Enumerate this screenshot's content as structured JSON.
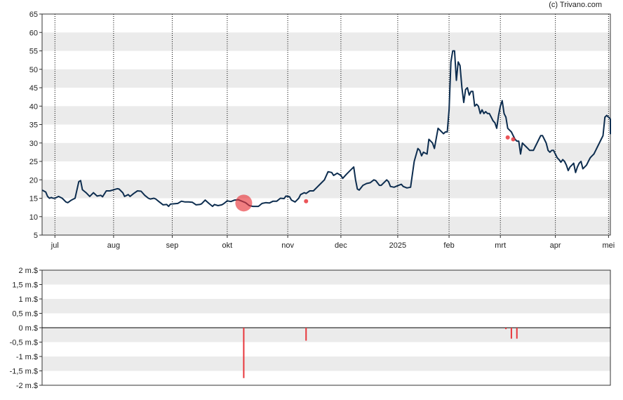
{
  "credit": "(c) Trivano.com",
  "colors": {
    "band": "#ebebeb",
    "price_line": "#0d2d4f",
    "marker": "#e8373c",
    "bar": "#e8373c"
  },
  "chart_data": [
    {
      "type": "line",
      "name": "price",
      "ylim": [
        5,
        65
      ],
      "yticks": [
        5,
        10,
        15,
        20,
        25,
        30,
        35,
        40,
        45,
        50,
        55,
        60,
        65
      ],
      "ytick_labels": [
        "5",
        "10",
        "15",
        "20",
        "25",
        "30",
        "35",
        "40",
        "45",
        "50",
        "55",
        "60",
        "65"
      ],
      "xlim": [
        -2,
        308
      ],
      "month_ticks": [
        {
          "label": "jul",
          "x": 5
        },
        {
          "label": "aug",
          "x": 37
        },
        {
          "label": "sep",
          "x": 69
        },
        {
          "label": "okt",
          "x": 99
        },
        {
          "label": "nov",
          "x": 132
        },
        {
          "label": "dec",
          "x": 161
        },
        {
          "label": "2025",
          "x": 192
        },
        {
          "label": "feb",
          "x": 220
        },
        {
          "label": "mrt",
          "x": 248
        },
        {
          "label": "apr",
          "x": 278
        },
        {
          "label": "mei",
          "x": 307
        }
      ],
      "grid": true,
      "series": [
        {
          "values": [
            [
              -2,
              17.2
            ],
            [
              0,
              16.7
            ],
            [
              1,
              15.5
            ],
            [
              2,
              15
            ],
            [
              3,
              15.2
            ],
            [
              4,
              15
            ],
            [
              5,
              15
            ],
            [
              7,
              15.5
            ],
            [
              9,
              15
            ],
            [
              11,
              14
            ],
            [
              12,
              13.8
            ],
            [
              14,
              14.5
            ],
            [
              16,
              15
            ],
            [
              18,
              19.5
            ],
            [
              19,
              19.8
            ],
            [
              20,
              17.3
            ],
            [
              22,
              16.5
            ],
            [
              24,
              15.5
            ],
            [
              26,
              16.5
            ],
            [
              28,
              15.6
            ],
            [
              30,
              15.8
            ],
            [
              31,
              15.4
            ],
            [
              33,
              17
            ],
            [
              35,
              17
            ],
            [
              37,
              17.3
            ],
            [
              39,
              17.6
            ],
            [
              40,
              17.5
            ],
            [
              42,
              16.5
            ],
            [
              43,
              15.5
            ],
            [
              45,
              16
            ],
            [
              46,
              15.5
            ],
            [
              48,
              16.3
            ],
            [
              50,
              17
            ],
            [
              52,
              16.9
            ],
            [
              54,
              15.8
            ],
            [
              56,
              15
            ],
            [
              57,
              14.8
            ],
            [
              59,
              15
            ],
            [
              60,
              14.8
            ],
            [
              62,
              14
            ],
            [
              64,
              13.2
            ],
            [
              66,
              13.3
            ],
            [
              67,
              12.8
            ],
            [
              68,
              13.4
            ],
            [
              70,
              13.5
            ],
            [
              72,
              13.6
            ],
            [
              74,
              14.2
            ],
            [
              76,
              14
            ],
            [
              78,
              14
            ],
            [
              80,
              13.9
            ],
            [
              82,
              13.2
            ],
            [
              84,
              13.3
            ],
            [
              85,
              13.5
            ],
            [
              87,
              14.5
            ],
            [
              89,
              13.6
            ],
            [
              91,
              12.8
            ],
            [
              92,
              13.3
            ],
            [
              94,
              13
            ],
            [
              96,
              13.2
            ],
            [
              97,
              13.5
            ],
            [
              99,
              14.3
            ],
            [
              101,
              14.1
            ],
            [
              103,
              14.5
            ],
            [
              105,
              14.6
            ],
            [
              107,
              14.2
            ],
            [
              109,
              13.8
            ],
            [
              111,
              13
            ],
            [
              113,
              12.8
            ],
            [
              115,
              12.8
            ],
            [
              116,
              12.8
            ],
            [
              118,
              13.6
            ],
            [
              120,
              13.8
            ],
            [
              122,
              13.7
            ],
            [
              124,
              14.2
            ],
            [
              126,
              14.2
            ],
            [
              128,
              15
            ],
            [
              130,
              14.9
            ],
            [
              131,
              15.6
            ],
            [
              133,
              15.4
            ],
            [
              134,
              14.5
            ],
            [
              136,
              14
            ],
            [
              138,
              15
            ],
            [
              139,
              16
            ],
            [
              141,
              16.5
            ],
            [
              142,
              16.3
            ],
            [
              144,
              17
            ],
            [
              146,
              17
            ],
            [
              148,
              18
            ],
            [
              150,
              19
            ],
            [
              152,
              20
            ],
            [
              154,
              22.2
            ],
            [
              156,
              22
            ],
            [
              157,
              21.2
            ],
            [
              159,
              21.8
            ],
            [
              161,
              21.2
            ],
            [
              162,
              20.4
            ],
            [
              164,
              21.5
            ],
            [
              166,
              22.5
            ],
            [
              168,
              23.5
            ],
            [
              169,
              20
            ],
            [
              170,
              17.5
            ],
            [
              171,
              17.2
            ],
            [
              173,
              18.5
            ],
            [
              175,
              19
            ],
            [
              177,
              19.2
            ],
            [
              179,
              20
            ],
            [
              180,
              19.8
            ],
            [
              182,
              18.5
            ],
            [
              183,
              18.5
            ],
            [
              185,
              19.5
            ],
            [
              186,
              20
            ],
            [
              187,
              19.5
            ],
            [
              188,
              18.2
            ],
            [
              190,
              18
            ],
            [
              192,
              18.4
            ],
            [
              194,
              18.8
            ],
            [
              195,
              18.2
            ],
            [
              197,
              17.8
            ],
            [
              199,
              18
            ],
            [
              201,
              25
            ],
            [
              203,
              28.5
            ],
            [
              204,
              28
            ],
            [
              205,
              26.5
            ],
            [
              206,
              27.5
            ],
            [
              208,
              27
            ],
            [
              209,
              31
            ],
            [
              211,
              30
            ],
            [
              212,
              28.5
            ],
            [
              214,
              34
            ],
            [
              216,
              33
            ],
            [
              217,
              32.5
            ],
            [
              218,
              33
            ],
            [
              219,
              33
            ],
            [
              220,
              39
            ],
            [
              221,
              52
            ],
            [
              222,
              55
            ],
            [
              223,
              55
            ],
            [
              224,
              47
            ],
            [
              225,
              52
            ],
            [
              226,
              51
            ],
            [
              227,
              45
            ],
            [
              228,
              41
            ],
            [
              229,
              44.5
            ],
            [
              230,
              45
            ],
            [
              231,
              43
            ],
            [
              232,
              44
            ],
            [
              233,
              44
            ],
            [
              234,
              40
            ],
            [
              235,
              40.5
            ],
            [
              236,
              40
            ],
            [
              237,
              38
            ],
            [
              238,
              39
            ],
            [
              239,
              38
            ],
            [
              240,
              38.5
            ],
            [
              241,
              38
            ],
            [
              242,
              38
            ],
            [
              243,
              37
            ],
            [
              244,
              36
            ],
            [
              245,
              35.5
            ],
            [
              246,
              34
            ],
            [
              247,
              37.5
            ],
            [
              248,
              40
            ],
            [
              249,
              41.5
            ],
            [
              250,
              38
            ],
            [
              251,
              37
            ],
            [
              252,
              34
            ],
            [
              253,
              33.5
            ],
            [
              254,
              33
            ],
            [
              255,
              32
            ],
            [
              256,
              31
            ],
            [
              257,
              30.5
            ],
            [
              258,
              30.5
            ],
            [
              259,
              27
            ],
            [
              260,
              30
            ],
            [
              261,
              29.5
            ],
            [
              262,
              29
            ],
            [
              263,
              28.5
            ],
            [
              264,
              28
            ],
            [
              265,
              28
            ],
            [
              266,
              28
            ],
            [
              267,
              29
            ],
            [
              268,
              30
            ],
            [
              269,
              31
            ],
            [
              270,
              32
            ],
            [
              271,
              32
            ],
            [
              272,
              31
            ],
            [
              273,
              30
            ],
            [
              274,
              28
            ],
            [
              275,
              27.5
            ],
            [
              276,
              28
            ],
            [
              277,
              28
            ],
            [
              278,
              27
            ],
            [
              279,
              26
            ],
            [
              280,
              25.5
            ],
            [
              281,
              24.8
            ],
            [
              282,
              25.5
            ],
            [
              283,
              25
            ],
            [
              284,
              24
            ],
            [
              285,
              22.5
            ],
            [
              286,
              23.5
            ],
            [
              287,
              24
            ],
            [
              288,
              24.5
            ],
            [
              289,
              22
            ],
            [
              290,
              23.5
            ],
            [
              291,
              24.5
            ],
            [
              292,
              25
            ],
            [
              293,
              23
            ],
            [
              294,
              23.5
            ],
            [
              295,
              24
            ],
            [
              296,
              25
            ],
            [
              297,
              26
            ],
            [
              298,
              26.5
            ],
            [
              299,
              27
            ],
            [
              300,
              28
            ],
            [
              301,
              29
            ],
            [
              302,
              30
            ],
            [
              303,
              31
            ],
            [
              304,
              32
            ],
            [
              305,
              37
            ],
            [
              306,
              37.5
            ],
            [
              307,
              37
            ],
            [
              308,
              36.5
            ],
            [
              309,
              36.5
            ],
            [
              310,
              33
            ],
            [
              311,
              32.5
            ],
            [
              312,
              35.5
            ]
          ]
        }
      ],
      "markers": [
        {
          "x": 108,
          "y": 13.7,
          "size": "large"
        },
        {
          "x": 142,
          "y": 14.2,
          "size": "small"
        },
        {
          "x": 252,
          "y": 31.5,
          "size": "small"
        },
        {
          "x": 255,
          "y": 31.0,
          "size": "small"
        }
      ]
    },
    {
      "type": "bar",
      "name": "insider-transactions",
      "ylim": [
        -2,
        2
      ],
      "yticks": [
        -2,
        -1.5,
        -1,
        -0.5,
        0,
        0.5,
        1,
        1.5,
        2
      ],
      "ytick_labels": [
        "-2 m.$",
        "-1,5 m.$",
        "-1 m.$",
        "-0,5 m.$",
        "0 m.$",
        "0,5 m.$",
        "1 m.$",
        "1,5 m.$",
        "2 m.$"
      ],
      "xlim": [
        -2,
        308
      ],
      "grid": true,
      "values": [
        {
          "x": 108,
          "value": -1.75
        },
        {
          "x": 142,
          "value": -0.45
        },
        {
          "x": 251,
          "value": -0.05
        },
        {
          "x": 254,
          "value": -0.38
        },
        {
          "x": 257,
          "value": -0.38
        }
      ]
    }
  ]
}
